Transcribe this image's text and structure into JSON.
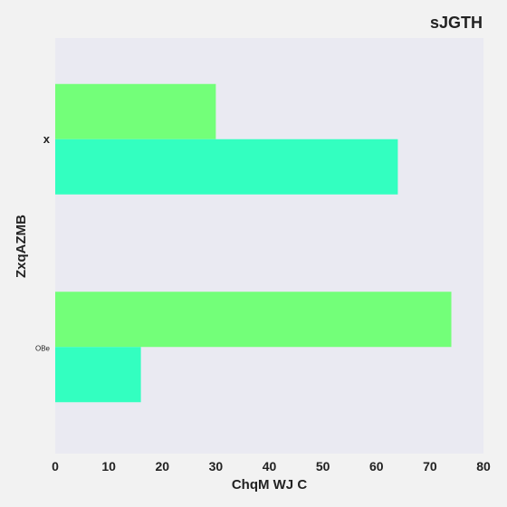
{
  "chart_data": {
    "type": "bar",
    "orientation": "horizontal",
    "title": "sJGTH",
    "xlabel": "ChqM WJ C",
    "ylabel": "ZxqAZMB",
    "categories": [
      "x",
      "OBe"
    ],
    "series": [
      {
        "color": "#73ff79",
        "values": [
          30,
          74
        ]
      },
      {
        "color": "#33ffc0",
        "values": [
          64,
          16
        ]
      }
    ],
    "xlim": [
      0,
      80
    ],
    "xticks": [
      0,
      10,
      20,
      30,
      40,
      50,
      60,
      70,
      80
    ],
    "grid": false,
    "legend": "none"
  },
  "colors": {
    "page_background": "#f2f2f2",
    "plot_background": "#eaeaf2"
  }
}
